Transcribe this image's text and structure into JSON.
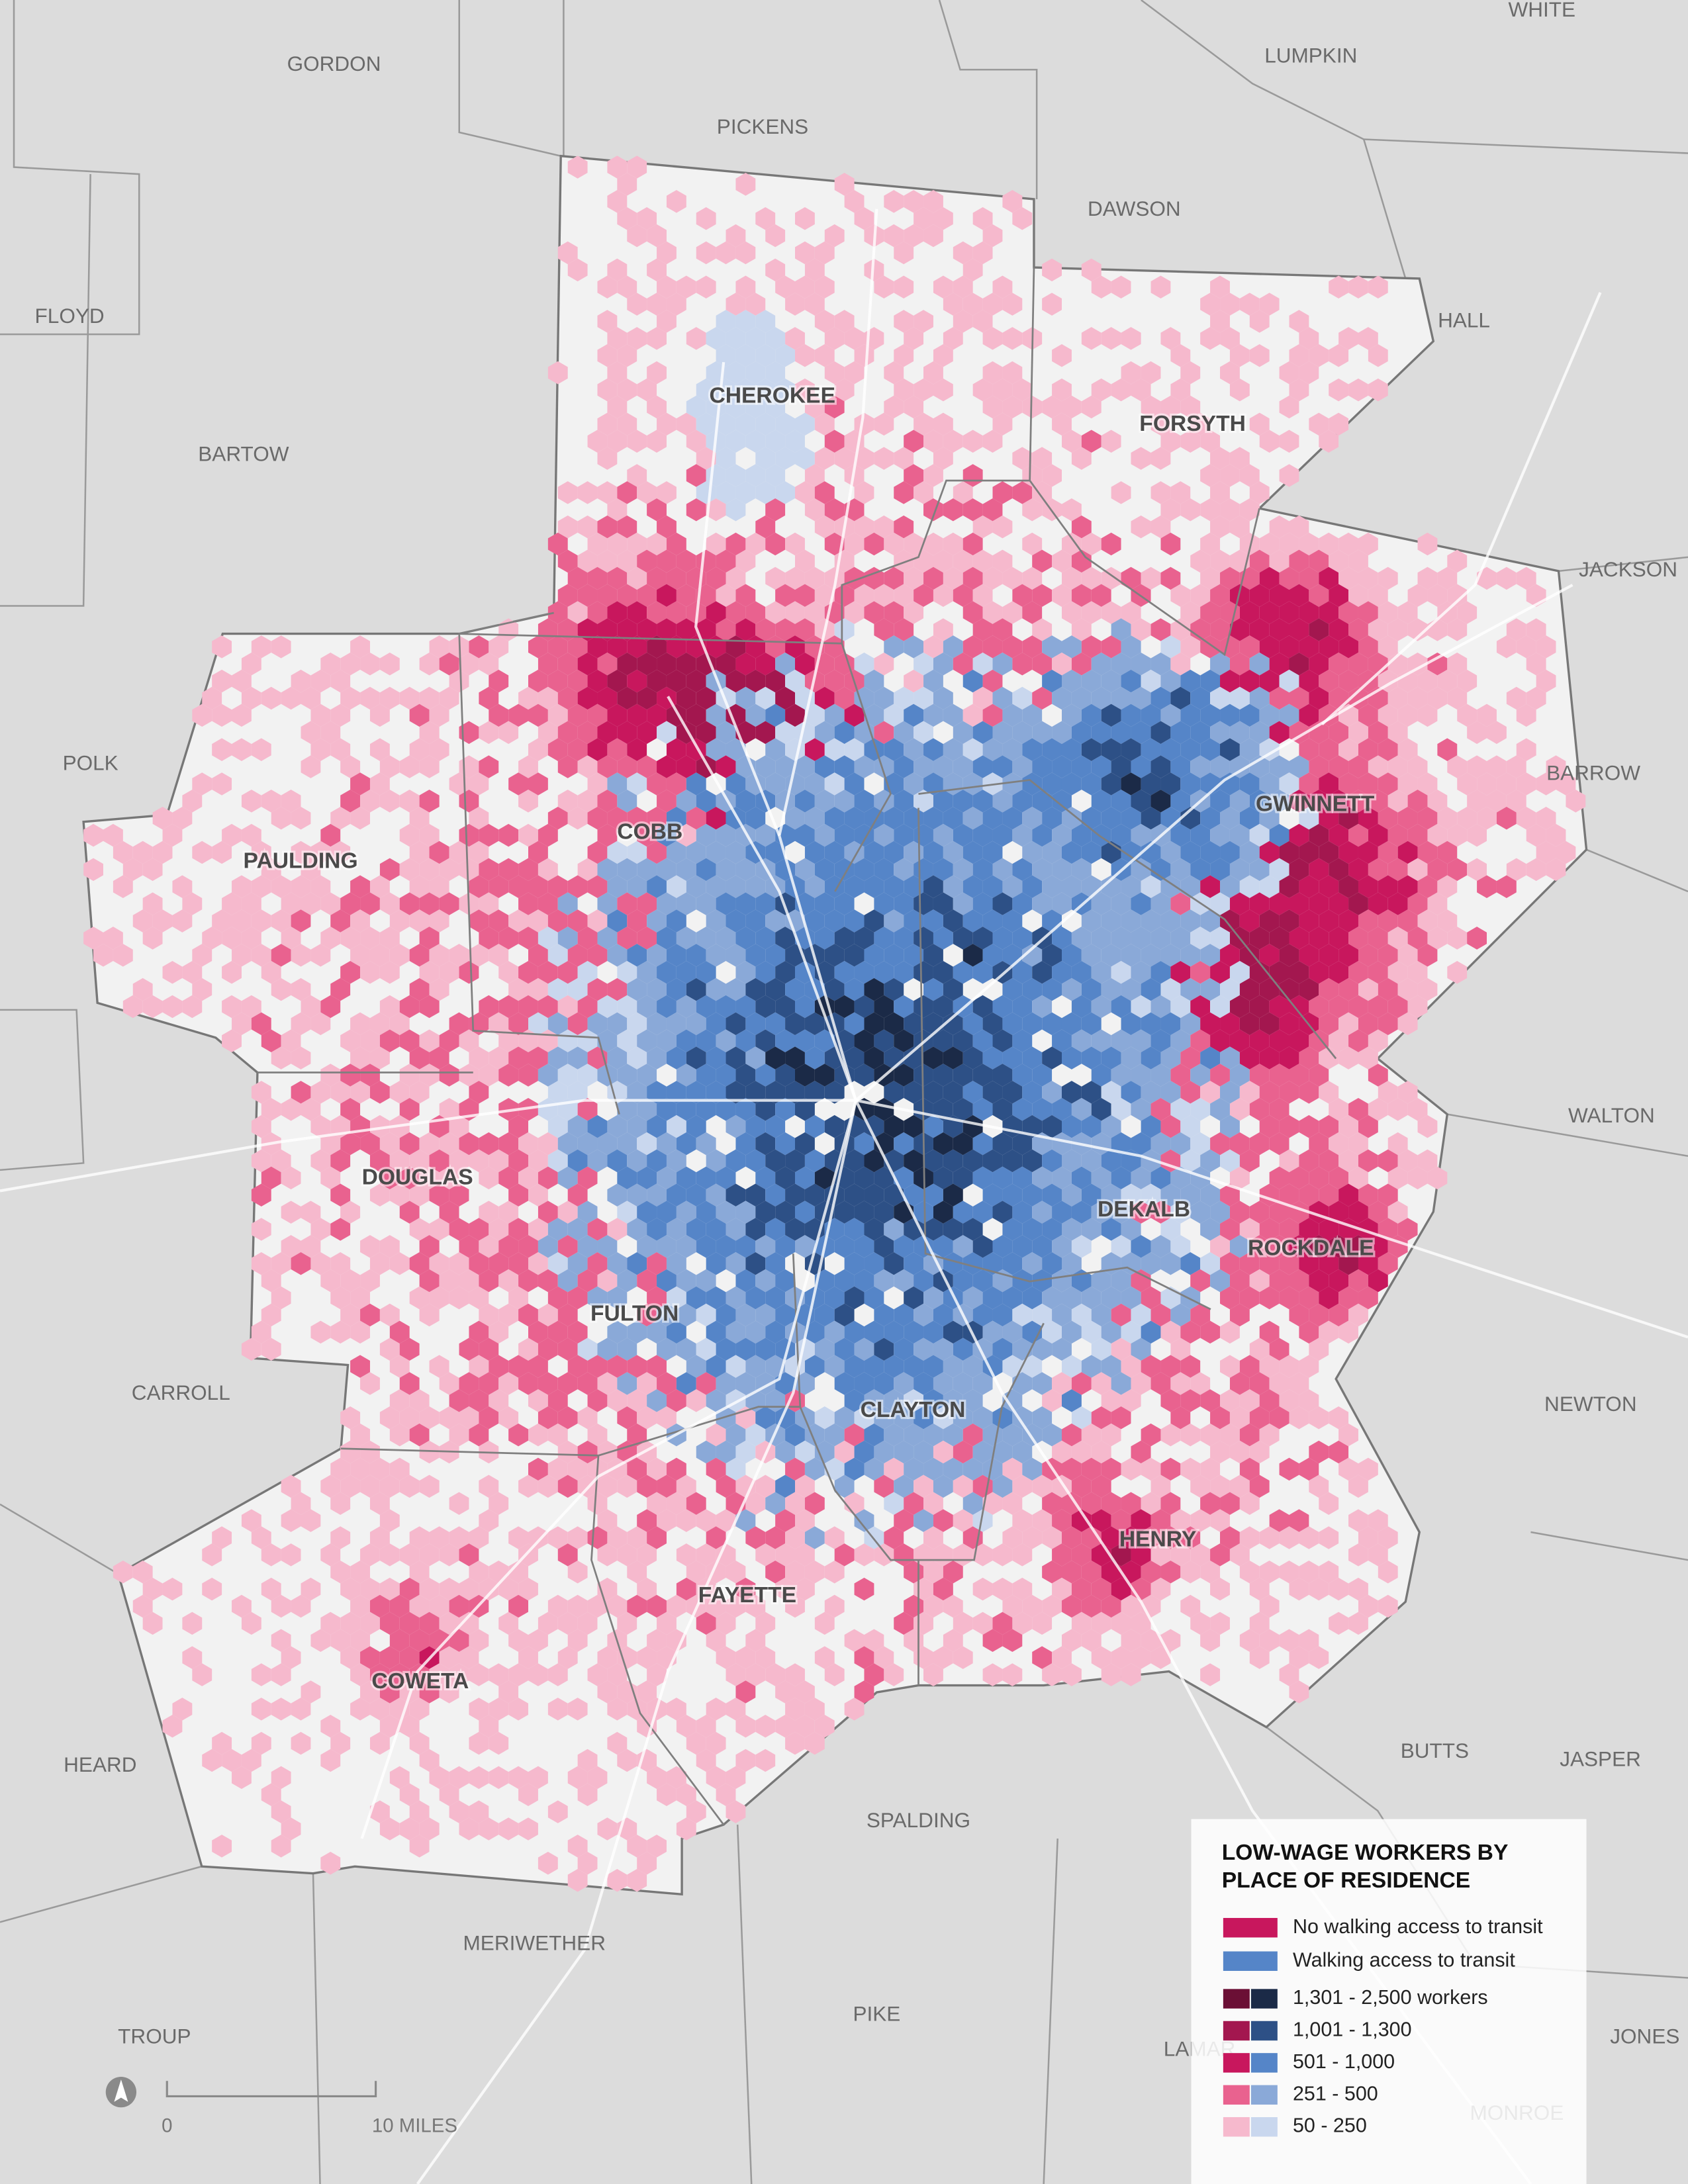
{
  "map": {
    "core_counties": [
      "CHEROKEE",
      "FORSYTH",
      "COBB",
      "GWINNETT",
      "PAULDING",
      "DOUGLAS",
      "DEKALB",
      "ROCKDALE",
      "FULTON",
      "CLAYTON",
      "HENRY",
      "FAYETTE",
      "COWETA"
    ],
    "outer_counties": [
      "GORDON",
      "PICKENS",
      "LUMPKIN",
      "WHITE",
      "DAWSON",
      "HALL",
      "FLOYD",
      "BARTOW",
      "JACKSON",
      "POLK",
      "BARROW",
      "WALTON",
      "CARROLL",
      "NEWTON",
      "HEARD",
      "BUTTS",
      "JASPER",
      "SPALDING",
      "MERIWETHER",
      "PIKE",
      "TROUP",
      "LAMAR",
      "JONES",
      "MONROE"
    ]
  },
  "legend": {
    "title_lines": [
      "LOW-WAGE WORKERS BY",
      "PLACE OF RESIDENCE"
    ],
    "groups": [
      {
        "label": "No walking access to transit",
        "color": "#c8175d"
      },
      {
        "label": "Walking access to transit",
        "color": "#5585c8"
      }
    ],
    "classes": [
      {
        "label": "1,301 - 2,500 workers",
        "colors": [
          "#6b0f35",
          "#1b2a47"
        ]
      },
      {
        "label": "1,001 - 1,300",
        "colors": [
          "#a3174f",
          "#2d5086"
        ]
      },
      {
        "label": "501 - 1,000",
        "colors": [
          "#c8175d",
          "#5585c8"
        ]
      },
      {
        "label": "251 - 500",
        "colors": [
          "#e9628f",
          "#8aa9d8"
        ]
      },
      {
        "label": "50 - 250",
        "colors": [
          "#f6b9cd",
          "#c9d7ee"
        ]
      }
    ]
  },
  "scale_bar": {
    "start_label": "0",
    "end_label": "10 MILES"
  }
}
